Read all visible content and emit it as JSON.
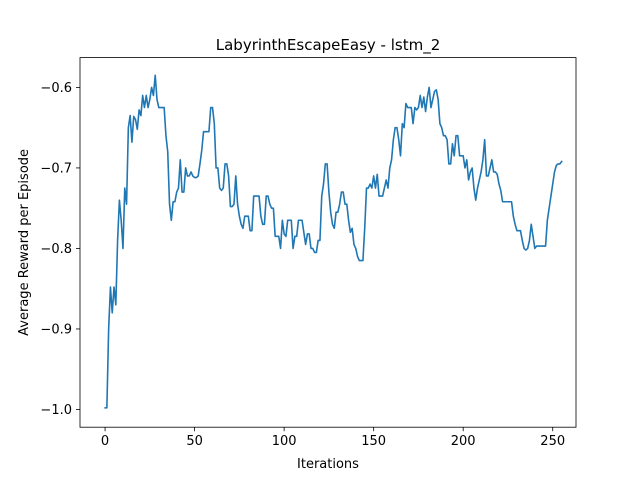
{
  "chart_data": {
    "type": "line",
    "title": "LabyrinthEscapeEasy - lstm_2",
    "xlabel": "Iterations",
    "ylabel": "Average Reward per Episode",
    "xlim": [
      -14,
      263
    ],
    "ylim": [
      -1.022,
      -0.563
    ],
    "xticks": [
      0,
      50,
      100,
      150,
      200,
      250
    ],
    "xtick_labels": [
      "0",
      "50",
      "100",
      "150",
      "200",
      "250"
    ],
    "yticks": [
      -1.0,
      -0.9,
      -0.8,
      -0.7,
      -0.6
    ],
    "ytick_labels": [
      "−1.0",
      "−0.9",
      "−0.8",
      "−0.7",
      "−0.6"
    ],
    "grid": false,
    "color": "#1f77b4",
    "series": [
      {
        "points": [
          [
            0,
            -0.998
          ],
          [
            1,
            -0.998
          ],
          [
            2,
            -0.9
          ],
          [
            3,
            -0.848
          ],
          [
            4,
            -0.88
          ],
          [
            5,
            -0.848
          ],
          [
            6,
            -0.87
          ],
          [
            7,
            -0.79
          ],
          [
            8,
            -0.74
          ],
          [
            9,
            -0.765
          ],
          [
            10,
            -0.8
          ],
          [
            11,
            -0.725
          ],
          [
            12,
            -0.745
          ],
          [
            13,
            -0.65
          ],
          [
            14,
            -0.635
          ],
          [
            15,
            -0.668
          ],
          [
            16,
            -0.636
          ],
          [
            17,
            -0.64
          ],
          [
            18,
            -0.652
          ],
          [
            19,
            -0.628
          ],
          [
            20,
            -0.635
          ],
          [
            21,
            -0.61
          ],
          [
            22,
            -0.625
          ],
          [
            23,
            -0.61
          ],
          [
            24,
            -0.625
          ],
          [
            25,
            -0.615
          ],
          [
            26,
            -0.6
          ],
          [
            27,
            -0.61
          ],
          [
            28,
            -0.585
          ],
          [
            29,
            -0.615
          ],
          [
            30,
            -0.625
          ],
          [
            31,
            -0.625
          ],
          [
            32,
            -0.625
          ],
          [
            33,
            -0.625
          ],
          [
            34,
            -0.66
          ],
          [
            35,
            -0.68
          ],
          [
            36,
            -0.745
          ],
          [
            37,
            -0.765
          ],
          [
            38,
            -0.742
          ],
          [
            39,
            -0.742
          ],
          [
            40,
            -0.73
          ],
          [
            41,
            -0.725
          ],
          [
            42,
            -0.69
          ],
          [
            43,
            -0.73
          ],
          [
            44,
            -0.73
          ],
          [
            45,
            -0.7
          ],
          [
            46,
            -0.71
          ],
          [
            47,
            -0.71
          ],
          [
            48,
            -0.705
          ],
          [
            49,
            -0.71
          ],
          [
            50,
            -0.712
          ],
          [
            51,
            -0.712
          ],
          [
            52,
            -0.71
          ],
          [
            53,
            -0.695
          ],
          [
            54,
            -0.678
          ],
          [
            55,
            -0.655
          ],
          [
            56,
            -0.655
          ],
          [
            57,
            -0.655
          ],
          [
            58,
            -0.655
          ],
          [
            59,
            -0.625
          ],
          [
            60,
            -0.625
          ],
          [
            61,
            -0.645
          ],
          [
            62,
            -0.7
          ],
          [
            63,
            -0.7
          ],
          [
            64,
            -0.725
          ],
          [
            65,
            -0.728
          ],
          [
            66,
            -0.725
          ],
          [
            67,
            -0.695
          ],
          [
            68,
            -0.695
          ],
          [
            69,
            -0.71
          ],
          [
            70,
            -0.748
          ],
          [
            71,
            -0.748
          ],
          [
            72,
            -0.745
          ],
          [
            73,
            -0.71
          ],
          [
            74,
            -0.745
          ],
          [
            75,
            -0.76
          ],
          [
            76,
            -0.77
          ],
          [
            77,
            -0.775
          ],
          [
            78,
            -0.76
          ],
          [
            79,
            -0.76
          ],
          [
            80,
            -0.76
          ],
          [
            81,
            -0.778
          ],
          [
            82,
            -0.778
          ],
          [
            83,
            -0.735
          ],
          [
            84,
            -0.735
          ],
          [
            85,
            -0.735
          ],
          [
            86,
            -0.735
          ],
          [
            87,
            -0.76
          ],
          [
            88,
            -0.77
          ],
          [
            89,
            -0.77
          ],
          [
            90,
            -0.735
          ],
          [
            91,
            -0.735
          ],
          [
            92,
            -0.745
          ],
          [
            93,
            -0.75
          ],
          [
            94,
            -0.75
          ],
          [
            95,
            -0.785
          ],
          [
            96,
            -0.785
          ],
          [
            97,
            -0.785
          ],
          [
            98,
            -0.8
          ],
          [
            99,
            -0.765
          ],
          [
            100,
            -0.782
          ],
          [
            101,
            -0.785
          ],
          [
            102,
            -0.765
          ],
          [
            103,
            -0.765
          ],
          [
            104,
            -0.765
          ],
          [
            105,
            -0.8
          ],
          [
            106,
            -0.785
          ],
          [
            107,
            -0.785
          ],
          [
            108,
            -0.765
          ],
          [
            109,
            -0.765
          ],
          [
            110,
            -0.765
          ],
          [
            111,
            -0.78
          ],
          [
            112,
            -0.795
          ],
          [
            113,
            -0.782
          ],
          [
            114,
            -0.782
          ],
          [
            115,
            -0.8
          ],
          [
            116,
            -0.8
          ],
          [
            117,
            -0.805
          ],
          [
            118,
            -0.805
          ],
          [
            119,
            -0.79
          ],
          [
            120,
            -0.79
          ],
          [
            121,
            -0.735
          ],
          [
            122,
            -0.72
          ],
          [
            123,
            -0.695
          ],
          [
            124,
            -0.695
          ],
          [
            125,
            -0.73
          ],
          [
            126,
            -0.755
          ],
          [
            127,
            -0.77
          ],
          [
            128,
            -0.775
          ],
          [
            129,
            -0.755
          ],
          [
            130,
            -0.755
          ],
          [
            131,
            -0.745
          ],
          [
            132,
            -0.73
          ],
          [
            133,
            -0.73
          ],
          [
            134,
            -0.745
          ],
          [
            135,
            -0.745
          ],
          [
            136,
            -0.765
          ],
          [
            137,
            -0.78
          ],
          [
            138,
            -0.775
          ],
          [
            139,
            -0.795
          ],
          [
            140,
            -0.8
          ],
          [
            141,
            -0.81
          ],
          [
            142,
            -0.815
          ],
          [
            143,
            -0.815
          ],
          [
            144,
            -0.815
          ],
          [
            145,
            -0.775
          ],
          [
            146,
            -0.725
          ],
          [
            147,
            -0.725
          ],
          [
            148,
            -0.72
          ],
          [
            149,
            -0.725
          ],
          [
            150,
            -0.71
          ],
          [
            151,
            -0.725
          ],
          [
            152,
            -0.708
          ],
          [
            153,
            -0.735
          ],
          [
            154,
            -0.735
          ],
          [
            155,
            -0.735
          ],
          [
            156,
            -0.725
          ],
          [
            157,
            -0.715
          ],
          [
            158,
            -0.725
          ],
          [
            159,
            -0.7
          ],
          [
            160,
            -0.69
          ],
          [
            161,
            -0.665
          ],
          [
            162,
            -0.65
          ],
          [
            163,
            -0.65
          ],
          [
            164,
            -0.665
          ],
          [
            165,
            -0.685
          ],
          [
            166,
            -0.645
          ],
          [
            167,
            -0.65
          ],
          [
            168,
            -0.62
          ],
          [
            169,
            -0.625
          ],
          [
            170,
            -0.625
          ],
          [
            171,
            -0.625
          ],
          [
            172,
            -0.645
          ],
          [
            173,
            -0.625
          ],
          [
            174,
            -0.628
          ],
          [
            175,
            -0.625
          ],
          [
            176,
            -0.61
          ],
          [
            177,
            -0.625
          ],
          [
            178,
            -0.612
          ],
          [
            179,
            -0.63
          ],
          [
            180,
            -0.612
          ],
          [
            181,
            -0.6
          ],
          [
            182,
            -0.625
          ],
          [
            183,
            -0.615
          ],
          [
            184,
            -0.605
          ],
          [
            185,
            -0.603
          ],
          [
            186,
            -0.615
          ],
          [
            187,
            -0.645
          ],
          [
            188,
            -0.65
          ],
          [
            189,
            -0.66
          ],
          [
            190,
            -0.66
          ],
          [
            191,
            -0.665
          ],
          [
            192,
            -0.695
          ],
          [
            193,
            -0.695
          ],
          [
            194,
            -0.67
          ],
          [
            195,
            -0.685
          ],
          [
            196,
            -0.66
          ],
          [
            197,
            -0.66
          ],
          [
            198,
            -0.685
          ],
          [
            199,
            -0.685
          ],
          [
            200,
            -0.685
          ],
          [
            201,
            -0.7
          ],
          [
            202,
            -0.69
          ],
          [
            203,
            -0.715
          ],
          [
            204,
            -0.705
          ],
          [
            205,
            -0.7
          ],
          [
            206,
            -0.725
          ],
          [
            207,
            -0.74
          ],
          [
            208,
            -0.725
          ],
          [
            209,
            -0.715
          ],
          [
            210,
            -0.705
          ],
          [
            211,
            -0.69
          ],
          [
            212,
            -0.665
          ],
          [
            213,
            -0.71
          ],
          [
            214,
            -0.71
          ],
          [
            215,
            -0.7
          ],
          [
            216,
            -0.69
          ],
          [
            217,
            -0.705
          ],
          [
            218,
            -0.705
          ],
          [
            219,
            -0.708
          ],
          [
            220,
            -0.72
          ],
          [
            221,
            -0.728
          ],
          [
            222,
            -0.742
          ],
          [
            223,
            -0.742
          ],
          [
            224,
            -0.742
          ],
          [
            225,
            -0.742
          ],
          [
            226,
            -0.742
          ],
          [
            227,
            -0.742
          ],
          [
            228,
            -0.76
          ],
          [
            229,
            -0.77
          ],
          [
            230,
            -0.778
          ],
          [
            231,
            -0.778
          ],
          [
            232,
            -0.778
          ],
          [
            233,
            -0.79
          ],
          [
            234,
            -0.8
          ],
          [
            235,
            -0.802
          ],
          [
            236,
            -0.8
          ],
          [
            237,
            -0.79
          ],
          [
            238,
            -0.77
          ],
          [
            239,
            -0.785
          ],
          [
            240,
            -0.8
          ],
          [
            241,
            -0.797
          ],
          [
            242,
            -0.797
          ],
          [
            243,
            -0.797
          ],
          [
            244,
            -0.797
          ],
          [
            245,
            -0.797
          ],
          [
            246,
            -0.797
          ],
          [
            247,
            -0.765
          ],
          [
            248,
            -0.75
          ],
          [
            249,
            -0.735
          ],
          [
            250,
            -0.72
          ],
          [
            251,
            -0.705
          ],
          [
            252,
            -0.697
          ],
          [
            253,
            -0.695
          ],
          [
            254,
            -0.695
          ],
          [
            255,
            -0.692
          ]
        ]
      }
    ]
  }
}
